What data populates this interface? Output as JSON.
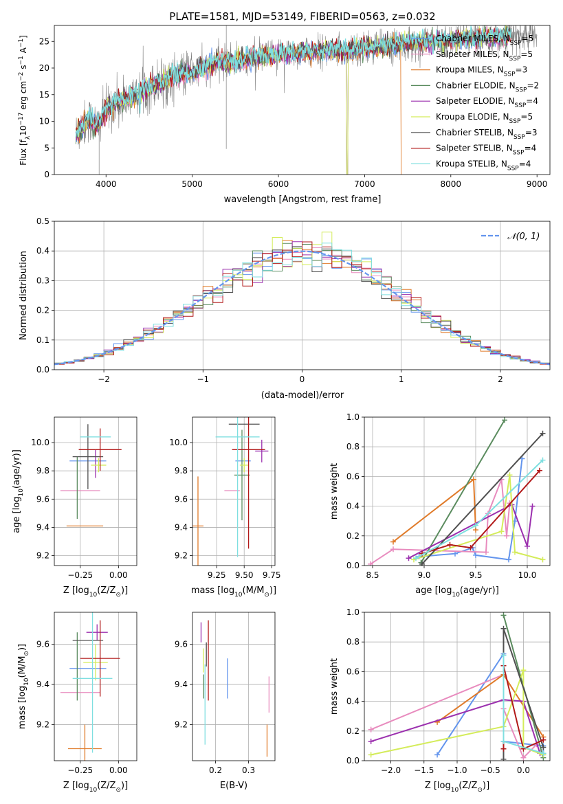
{
  "colors": {
    "Chabrier MILES": "#6495ed",
    "Salpeter MILES": "#e88bbe",
    "Kroupa MILES": "#e07b2a",
    "Chabrier ELODIE": "#5b8c5f",
    "Salpeter ELODIE": "#9b2fae",
    "Kroupa ELODIE": "#d4ec5a",
    "Chabrier STELIB": "#505050",
    "Salpeter STELIB": "#b21a1a",
    "Kroupa STELIB": "#7fdfe0",
    "gaussian": "#6495ed",
    "data": "#808080"
  },
  "chart_data": [
    {
      "id": "spectrum",
      "type": "line",
      "title": "PLATE=1581, MJD=53149, FIBERID=0563, z=0.032",
      "xlabel": "wavelength [Angstrom, rest frame]",
      "ylabel_text": "Flux [f",
      "ylabel_sub": "λ",
      "ylabel_rest": "10",
      "ylabel_sup1": "−17",
      "ylabel_mid": " erg cm",
      "ylabel_sup2": "−2",
      "ylabel_s": " s",
      "ylabel_sup3": "−1",
      "ylabel_end": " A",
      "ylabel_sup4": "−1",
      "ylabel_close": "]",
      "xlim": [
        3400,
        9150
      ],
      "ylim": [
        0,
        28
      ],
      "xticks": [
        "4000",
        "5000",
        "6000",
        "7000",
        "8000",
        "9000"
      ],
      "yticks": [
        "0",
        "5",
        "10",
        "15",
        "20",
        "25"
      ],
      "legend_position": "top-right",
      "legend": [
        {
          "name": "Chabrier MILES",
          "nssp": "5"
        },
        {
          "name": "Salpeter MILES",
          "nssp": "5"
        },
        {
          "name": "Kroupa MILES",
          "nssp": "3"
        },
        {
          "name": "Chabrier ELODIE",
          "nssp": "2"
        },
        {
          "name": "Salpeter ELODIE",
          "nssp": "4"
        },
        {
          "name": "Kroupa ELODIE",
          "nssp": "5"
        },
        {
          "name": "Chabrier STELIB",
          "nssp": "3"
        },
        {
          "name": "Salpeter STELIB",
          "nssp": "4"
        },
        {
          "name": "Kroupa STELIB",
          "nssp": "4"
        }
      ],
      "continuum": {
        "x": [
          3650,
          3800,
          3900,
          4000,
          4100,
          4300,
          4500,
          4800,
          5000,
          5300,
          5600,
          6000,
          6300,
          6600,
          6800,
          7000,
          7200,
          7500,
          7800,
          8200,
          8600,
          9000
        ],
        "y": [
          7.5,
          10.5,
          9,
          12,
          13.5,
          14.5,
          16.5,
          18.5,
          19.2,
          21,
          21.5,
          22.5,
          23,
          23.3,
          23.4,
          23.8,
          24,
          24.5,
          25,
          25.5,
          26,
          26
        ]
      }
    },
    {
      "id": "residuals",
      "type": "histogram",
      "xlabel": "(data-model)/error",
      "ylabel": "Normed distribution",
      "xlim": [
        -2.5,
        2.5
      ],
      "ylim": [
        0,
        0.5
      ],
      "xticks": [
        "−2",
        "−1",
        "0",
        "1",
        "2"
      ],
      "yticks": [
        "0.0",
        "0.1",
        "0.2",
        "0.3",
        "0.4",
        "0.5"
      ],
      "legend_label": "𝒩(0, 1)",
      "legend_position": "top-right",
      "bins": 50
    },
    {
      "id": "age_vs_Z",
      "type": "errorbar",
      "xlabel": "Z [log",
      "xlabel_sub": "10",
      "xlabel_rest": "(Z/Z",
      "xlabel_sun": "⊙",
      "xlabel_close": ")]",
      "ylabel": "age  [log",
      "ylabel_sub": "10",
      "ylabel_rest": "(age/yr)]",
      "xlim": [
        -0.42,
        0.12
      ],
      "ylim": [
        9.13,
        10.18
      ],
      "xticks": [
        "−0.25",
        "0.00"
      ],
      "yticks": [
        "9.2",
        "9.4",
        "9.6",
        "9.8",
        "10.0"
      ],
      "points": [
        {
          "m": "Chabrier MILES",
          "x": -0.2,
          "y": 9.87,
          "xerr": 0.12,
          "yerr": 0.0
        },
        {
          "m": "Salpeter MILES",
          "x": -0.25,
          "y": 9.66,
          "xerr": 0.13,
          "yerr": 0.0
        },
        {
          "m": "Kroupa MILES",
          "x": -0.22,
          "y": 9.41,
          "xerr": 0.12,
          "yerr": 0.0
        },
        {
          "m": "Chabrier ELODIE",
          "x": -0.27,
          "y": 9.68,
          "xerr": 0.0,
          "yerr": 0.22
        },
        {
          "m": "Salpeter ELODIE",
          "x": -0.15,
          "y": 9.85,
          "xerr": 0.0,
          "yerr": 0.1
        },
        {
          "m": "Kroupa ELODIE",
          "x": -0.13,
          "y": 9.84,
          "xerr": 0.05,
          "yerr": 0.05
        },
        {
          "m": "Chabrier STELIB",
          "x": -0.2,
          "y": 9.9,
          "xerr": 0.1,
          "yerr": 0.23
        },
        {
          "m": "Salpeter STELIB",
          "x": -0.12,
          "y": 9.95,
          "xerr": 0.14,
          "yerr": 0.15
        },
        {
          "m": "Kroupa STELIB",
          "x": -0.15,
          "y": 10.04,
          "xerr": 0.1,
          "yerr": 0.0
        }
      ]
    },
    {
      "id": "age_vs_mass",
      "type": "errorbar",
      "xlabel": "mass [log",
      "xlabel_sub": "10",
      "xlabel_rest": "(M/M",
      "xlabel_sun": "⊙",
      "xlabel_close": ")]",
      "xlim": [
        9.03,
        9.78
      ],
      "ylim": [
        9.13,
        10.18
      ],
      "xticks": [
        "9.25",
        "9.50",
        "9.75"
      ],
      "yticks": [
        "9.2",
        "9.4",
        "9.6",
        "9.8",
        "10.0"
      ],
      "points": [
        {
          "m": "Chabrier MILES",
          "x": 9.49,
          "y": 9.87,
          "xerr": 0.07,
          "yerr": 0.0
        },
        {
          "m": "Salpeter MILES",
          "x": 9.39,
          "y": 9.66,
          "xerr": 0.07,
          "yerr": 0.0
        },
        {
          "m": "Kroupa MILES",
          "x": 9.08,
          "y": 9.41,
          "xerr": 0.05,
          "yerr": 0.35
        },
        {
          "m": "Chabrier ELODIE",
          "x": 9.48,
          "y": 9.77,
          "xerr": 0.07,
          "yerr": 0.32
        },
        {
          "m": "Salpeter ELODIE",
          "x": 9.66,
          "y": 9.94,
          "xerr": 0.06,
          "yerr": 0.08
        },
        {
          "m": "Kroupa ELODIE",
          "x": 9.5,
          "y": 9.84,
          "xerr": 0.04,
          "yerr": 0.05
        },
        {
          "m": "Chabrier STELIB",
          "x": 9.5,
          "y": 10.13,
          "xerr": 0.14,
          "yerr": 0.0
        },
        {
          "m": "Salpeter STELIB",
          "x": 9.54,
          "y": 9.95,
          "xerr": 0.15,
          "yerr": 0.7
        },
        {
          "m": "Kroupa STELIB",
          "x": 9.44,
          "y": 10.04,
          "xerr": 0.2,
          "yerr": 0.85
        }
      ]
    },
    {
      "id": "weight_vs_age",
      "type": "line",
      "xlabel": "age  [log",
      "xlabel_sub": "10",
      "xlabel_rest": "(age/yr)]",
      "ylabel": "mass weight",
      "xlim": [
        8.42,
        10.22
      ],
      "ylim": [
        0,
        1
      ],
      "xticks": [
        "8.5",
        "9.0",
        "9.5",
        "10.0"
      ],
      "yticks": [
        "0.0",
        "0.2",
        "0.4",
        "0.6",
        "0.8",
        "1.0"
      ],
      "series": [
        {
          "m": "Chabrier MILES",
          "x": [
            8.95,
            9.3,
            9.47,
            9.5,
            9.82,
            9.88,
            9.95
          ],
          "y": [
            0.06,
            0.08,
            0.12,
            0.07,
            0.04,
            0.3,
            0.72
          ]
        },
        {
          "m": "Salpeter MILES",
          "x": [
            8.48,
            8.7,
            9.6,
            9.62,
            9.75,
            9.8,
            9.83
          ],
          "y": [
            0.01,
            0.11,
            0.09,
            0.35,
            0.58,
            0.2,
            0.42
          ]
        },
        {
          "m": "Kroupa MILES",
          "x": [
            8.7,
            9.48,
            9.5
          ],
          "y": [
            0.16,
            0.58,
            0.24
          ]
        },
        {
          "m": "Chabrier ELODIE",
          "x": [
            8.97,
            9.78
          ],
          "y": [
            0.02,
            0.98
          ]
        },
        {
          "m": "Salpeter ELODIE",
          "x": [
            8.85,
            9.85,
            10.0,
            10.05
          ],
          "y": [
            0.05,
            0.41,
            0.13,
            0.4
          ]
        },
        {
          "m": "Kroupa ELODIE",
          "x": [
            8.9,
            9.75,
            9.83,
            9.88,
            10.15
          ],
          "y": [
            0.04,
            0.23,
            0.61,
            0.09,
            0.04
          ]
        },
        {
          "m": "Chabrier STELIB",
          "x": [
            8.98,
            10.15
          ],
          "y": [
            0.01,
            0.89
          ]
        },
        {
          "m": "Salpeter STELIB",
          "x": [
            8.98,
            9.25,
            9.45,
            10.12
          ],
          "y": [
            0.08,
            0.14,
            0.12,
            0.64
          ]
        },
        {
          "m": "Kroupa STELIB",
          "x": [
            8.92,
            9.5,
            10.15
          ],
          "y": [
            0.05,
            0.27,
            0.71
          ]
        }
      ]
    },
    {
      "id": "mass_vs_Z",
      "type": "errorbar",
      "xlabel": "Z [log",
      "xlabel_sub": "10",
      "xlabel_rest": "(Z/Z",
      "xlabel_sun": "⊙",
      "xlabel_close": ")]",
      "ylabel": "mass [log",
      "ylabel_sub": "10",
      "ylabel_rest": "(M/M",
      "ylabel_sun": "⊙",
      "ylabel_close": ")]",
      "xlim": [
        -0.42,
        0.12
      ],
      "ylim": [
        9.02,
        9.76
      ],
      "xticks": [
        "−0.25",
        "0.00"
      ],
      "yticks": [
        "9.2",
        "9.4",
        "9.6"
      ],
      "points": [
        {
          "m": "Chabrier MILES",
          "x": -0.2,
          "y": 9.48,
          "xerr": 0.12,
          "yerr": 0.0
        },
        {
          "m": "Salpeter MILES",
          "x": -0.25,
          "y": 9.36,
          "xerr": 0.13,
          "yerr": 0.0
        },
        {
          "m": "Kroupa MILES",
          "x": -0.22,
          "y": 9.08,
          "xerr": 0.11,
          "yerr": 0.12
        },
        {
          "m": "Chabrier ELODIE",
          "x": -0.27,
          "y": 9.49,
          "xerr": 0.0,
          "yerr": 0.17
        },
        {
          "m": "Salpeter ELODIE",
          "x": -0.14,
          "y": 9.66,
          "xerr": 0.07,
          "yerr": 0.04
        },
        {
          "m": "Kroupa ELODIE",
          "x": -0.15,
          "y": 9.51,
          "xerr": 0.08,
          "yerr": 0.09
        },
        {
          "m": "Chabrier STELIB",
          "x": -0.2,
          "y": 9.62,
          "xerr": 0.1,
          "yerr": 0.0
        },
        {
          "m": "Salpeter STELIB",
          "x": -0.12,
          "y": 9.53,
          "xerr": 0.13,
          "yerr": 0.19
        },
        {
          "m": "Kroupa STELIB",
          "x": -0.17,
          "y": 9.43,
          "xerr": 0.13,
          "yerr": 0.37
        }
      ]
    },
    {
      "id": "mass_vs_ebv",
      "type": "errorbar",
      "xlabel": "E(B-V)",
      "xlim": [
        0.13,
        0.38
      ],
      "ylim": [
        9.02,
        9.76
      ],
      "xticks": [
        "0.2",
        "0.3"
      ],
      "yticks": [
        "9.2",
        "9.4",
        "9.6"
      ],
      "points": [
        {
          "m": "Chabrier MILES",
          "x": 0.236,
          "y": 9.43,
          "xerr": 0.0,
          "yerr": 0.1
        },
        {
          "m": "Salpeter MILES",
          "x": 0.362,
          "y": 9.35,
          "xerr": 0.0,
          "yerr": 0.09
        },
        {
          "m": "Kroupa MILES",
          "x": 0.356,
          "y": 9.12,
          "xerr": 0.0,
          "yerr": 0.08
        },
        {
          "m": "Chabrier ELODIE",
          "x": 0.164,
          "y": 9.39,
          "xerr": 0.0,
          "yerr": 0.06
        },
        {
          "m": "Salpeter ELODIE",
          "x": 0.156,
          "y": 9.66,
          "xerr": 0.0,
          "yerr": 0.05
        },
        {
          "m": "Kroupa ELODIE",
          "x": 0.163,
          "y": 9.52,
          "xerr": 0.0,
          "yerr": 0.06
        },
        {
          "m": "Chabrier STELIB",
          "x": 0.172,
          "y": 9.55,
          "xerr": 0.0,
          "yerr": 0.06
        },
        {
          "m": "Salpeter STELIB",
          "x": 0.178,
          "y": 9.52,
          "xerr": 0.0,
          "yerr": 0.2
        },
        {
          "m": "Kroupa STELIB",
          "x": 0.168,
          "y": 9.3,
          "xerr": 0.0,
          "yerr": 0.2
        }
      ]
    },
    {
      "id": "weight_vs_Z",
      "type": "line",
      "xlabel": "Z [log",
      "xlabel_sub": "10",
      "xlabel_rest": "(Z/Z",
      "xlabel_sun": "⊙",
      "xlabel_close": ")]",
      "ylabel": "mass weight",
      "xlim": [
        -2.4,
        0.4
      ],
      "ylim": [
        0,
        1
      ],
      "xticks": [
        "−2.0",
        "−1.5",
        "−1.0",
        "−0.5",
        "0.0"
      ],
      "yticks": [
        "0.0",
        "0.2",
        "0.4",
        "0.6",
        "0.8",
        "1.0"
      ],
      "series": [
        {
          "m": "Chabrier MILES",
          "x": [
            -1.3,
            -0.3,
            -0.3,
            0.3,
            0.3
          ],
          "y": [
            0.04,
            0.72,
            0.13,
            0.1,
            0.04
          ]
        },
        {
          "m": "Salpeter MILES",
          "x": [
            -2.3,
            -0.3,
            -0.3,
            0.0,
            0.2
          ],
          "y": [
            0.21,
            0.58,
            0.35,
            0.02,
            0.11
          ]
        },
        {
          "m": "Kroupa MILES",
          "x": [
            -1.3,
            -0.3,
            0.3
          ],
          "y": [
            0.26,
            0.58,
            0.16
          ]
        },
        {
          "m": "Chabrier ELODIE",
          "x": [
            -0.3,
            0.3
          ],
          "y": [
            0.98,
            0.02
          ]
        },
        {
          "m": "Salpeter ELODIE",
          "x": [
            -2.3,
            -0.3,
            0.0,
            0.25,
            0.3
          ],
          "y": [
            0.13,
            0.41,
            0.4,
            0.05,
            0.05
          ]
        },
        {
          "m": "Kroupa ELODIE",
          "x": [
            -2.3,
            -0.3,
            0.0,
            0.0,
            0.3
          ],
          "y": [
            0.04,
            0.23,
            0.61,
            0.09,
            0.04
          ]
        },
        {
          "m": "Chabrier STELIB",
          "x": [
            -0.3,
            -0.3,
            0.3
          ],
          "y": [
            0.01,
            0.89,
            0.09
          ]
        },
        {
          "m": "Salpeter STELIB",
          "x": [
            -0.3,
            -0.3,
            0.0,
            0.3
          ],
          "y": [
            0.08,
            0.64,
            0.08,
            0.14
          ]
        },
        {
          "m": "Kroupa STELIB",
          "x": [
            -0.3,
            -0.3,
            0.3
          ],
          "y": [
            0.71,
            0.13,
            0.05
          ]
        }
      ]
    }
  ]
}
